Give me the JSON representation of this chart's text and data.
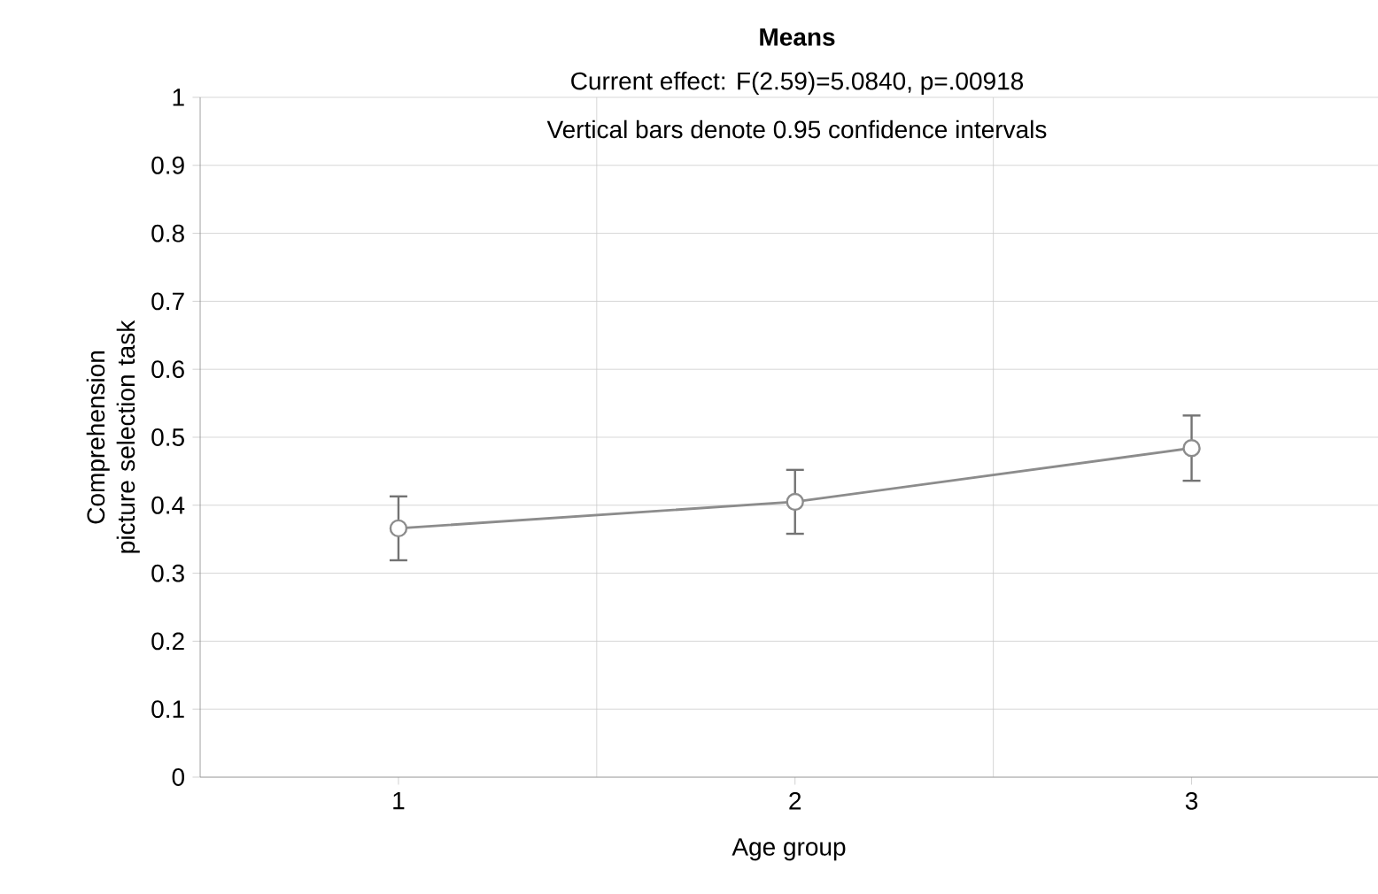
{
  "chart_data": {
    "type": "line",
    "title": "Means",
    "subtitle": "Current effect: F(2.59)=5.0840, p=.00918",
    "annotations": [
      "Vertical bars denote 0.95 confidence intervals"
    ],
    "xlabel": "Age group",
    "ylabel": "Comprehension picture selection task",
    "categories": [
      "1",
      "2",
      "3"
    ],
    "series": [
      {
        "color": "#8c8c8c",
        "values": [
          0.366,
          0.405,
          0.484
        ],
        "errors": [
          0.047,
          0.047,
          0.048
        ]
      }
    ],
    "ylim": [
      0,
      1
    ],
    "yticks": [
      0,
      0.1,
      0.2,
      0.3,
      0.4,
      0.5,
      0.6,
      0.7,
      0.8,
      0.9,
      1
    ],
    "grid": true,
    "marker": "circle",
    "line_style": "solid"
  }
}
